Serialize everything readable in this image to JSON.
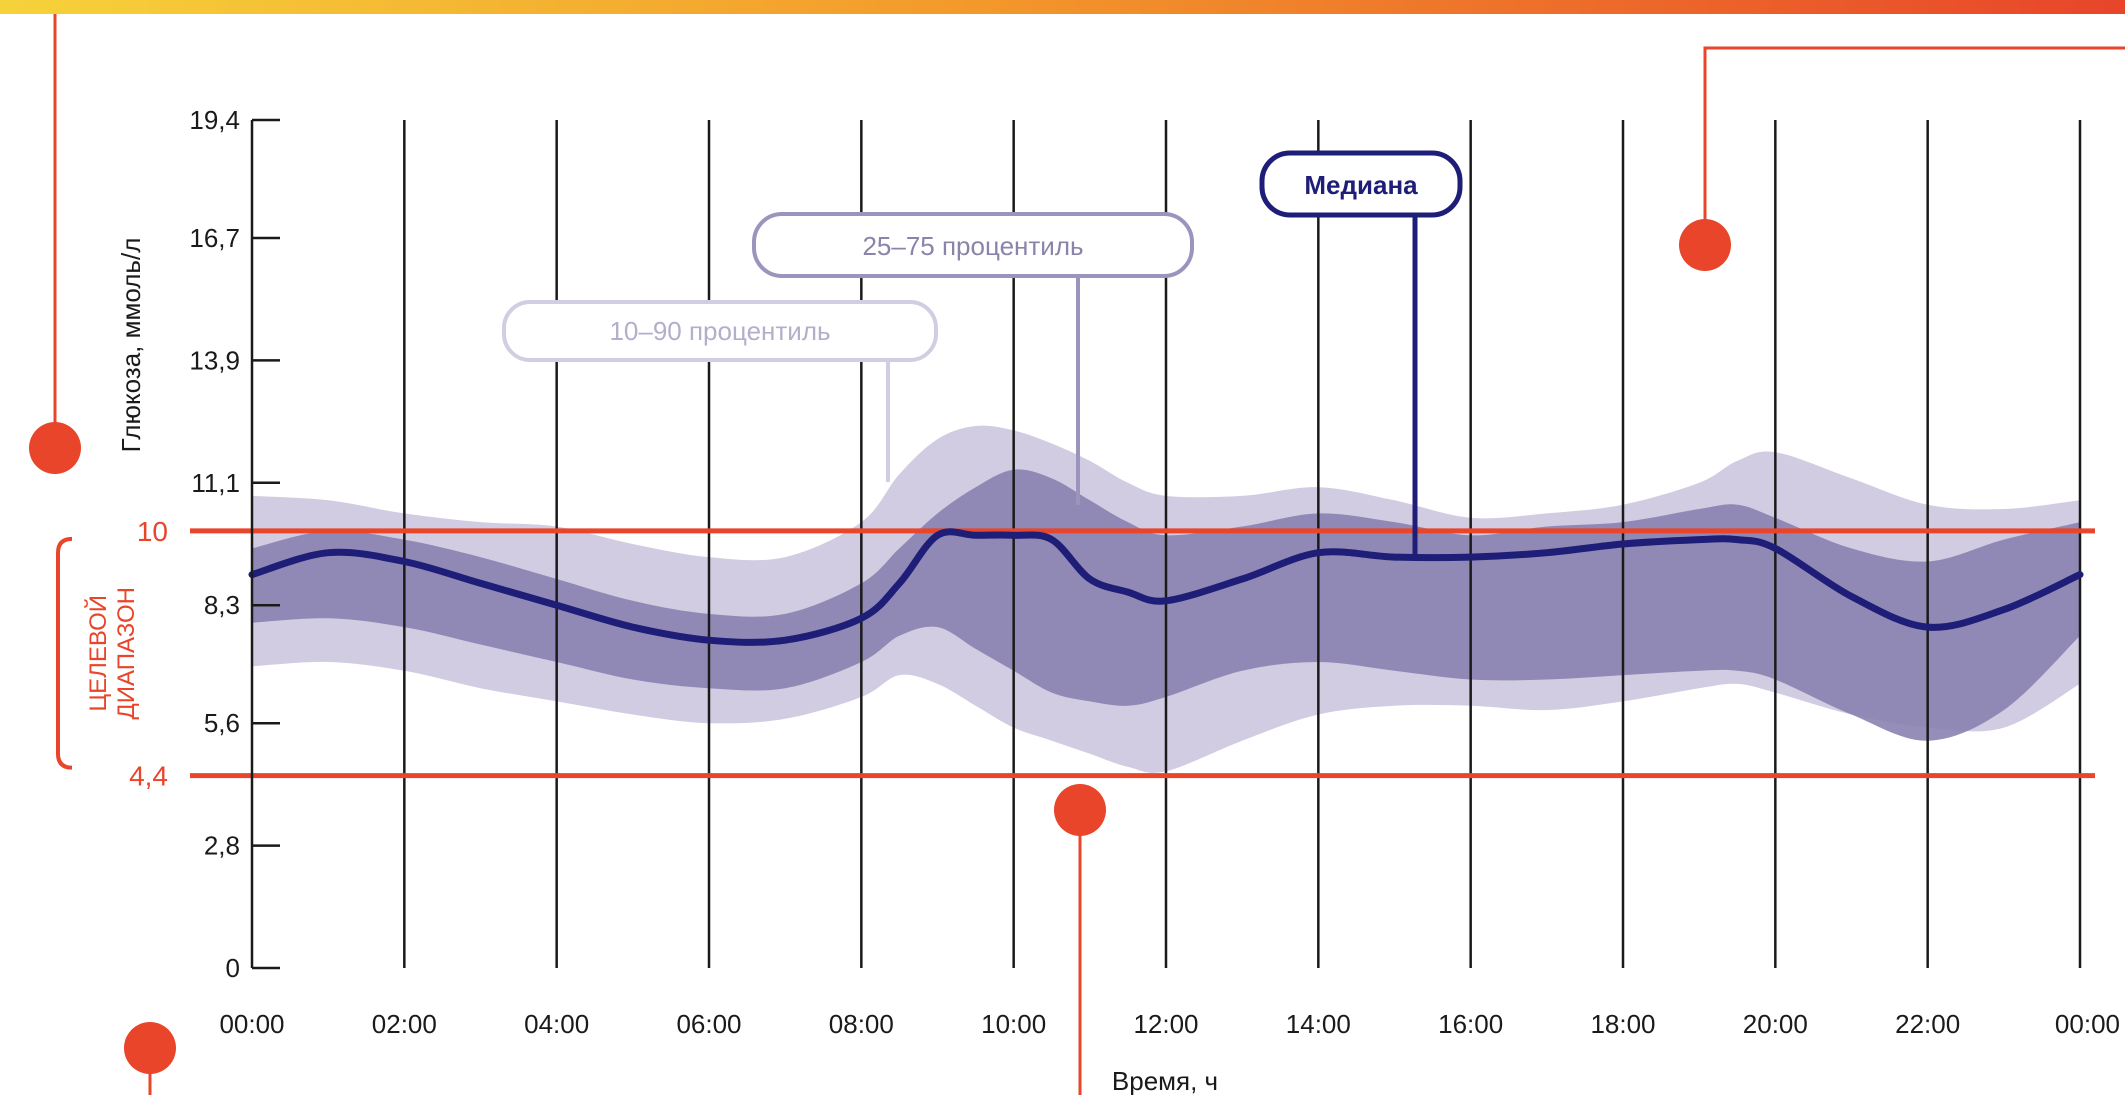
{
  "chart_data": {
    "type": "area",
    "ylabel": "Глюкоза, ммоль/л",
    "xlabel": "Время, ч",
    "x_tick_labels": [
      "00:00",
      "02:00",
      "04:00",
      "06:00",
      "08:00",
      "10:00",
      "12:00",
      "14:00",
      "16:00",
      "18:00",
      "20:00",
      "22:00",
      "00:00"
    ],
    "y_ticks": [
      0,
      2.8,
      5.6,
      8.3,
      11.1,
      13.9,
      16.7,
      19.4
    ],
    "y_tick_labels": [
      "0",
      "2,8",
      "5,6",
      "8,3",
      "11,1",
      "13,9",
      "16,7",
      "19,4"
    ],
    "ylim": [
      0,
      19.4
    ],
    "xlim_hours": [
      0,
      24
    ],
    "target_range": {
      "label_line1": "ЦЕЛЕВОЙ",
      "label_line2": "ДИАПАЗОН",
      "low": 4.4,
      "high": 10,
      "low_label": "4,4",
      "high_label": "10",
      "color": "#e8452a"
    },
    "annotations": {
      "p10_90": "10–90 процентиль",
      "p25_75": "25–75 процентиль",
      "median": "Медиана"
    },
    "hours": [
      0,
      1,
      2,
      3,
      4,
      5,
      6,
      7,
      8,
      8.5,
      9,
      9.5,
      10,
      10.5,
      11,
      11.5,
      12,
      13,
      14,
      15,
      16,
      17,
      18,
      19,
      19.5,
      20,
      21,
      22,
      23,
      24
    ],
    "series": [
      {
        "name": "Медиана",
        "role": "median",
        "color": "#1e1e78",
        "values": [
          9.0,
          9.5,
          9.3,
          8.8,
          8.3,
          7.8,
          7.5,
          7.5,
          8.0,
          8.8,
          9.9,
          9.9,
          9.9,
          9.8,
          8.9,
          8.6,
          8.4,
          8.9,
          9.5,
          9.4,
          9.4,
          9.5,
          9.7,
          9.8,
          9.8,
          9.6,
          8.5,
          7.8,
          8.2,
          9.0
        ]
      },
      {
        "name": "25–75 процентиль",
        "role": "p25",
        "color": "#8a82b0",
        "values": [
          7.9,
          8.0,
          7.8,
          7.4,
          7.0,
          6.6,
          6.4,
          6.4,
          7.0,
          7.6,
          7.8,
          7.3,
          6.8,
          6.3,
          6.1,
          6.0,
          6.2,
          6.8,
          7.0,
          6.8,
          6.6,
          6.6,
          6.7,
          6.8,
          6.8,
          6.6,
          5.8,
          5.2,
          5.9,
          7.6
        ]
      },
      {
        "name": "25–75 процентиль",
        "role": "p75",
        "color": "#8a82b0",
        "values": [
          9.6,
          10.0,
          9.8,
          9.4,
          8.9,
          8.4,
          8.1,
          8.1,
          8.8,
          9.6,
          10.4,
          11.0,
          11.4,
          11.2,
          10.7,
          10.2,
          9.9,
          10.1,
          10.4,
          10.2,
          9.9,
          10.1,
          10.2,
          10.5,
          10.6,
          10.3,
          9.6,
          9.3,
          9.8,
          10.2
        ]
      },
      {
        "name": "10–90 процентиль",
        "role": "p10",
        "color": "#c9c3dd",
        "values": [
          6.9,
          7.0,
          6.8,
          6.4,
          6.1,
          5.8,
          5.6,
          5.7,
          6.2,
          6.7,
          6.5,
          6.0,
          5.5,
          5.2,
          4.9,
          4.6,
          4.5,
          5.2,
          5.8,
          6.0,
          6.0,
          5.9,
          6.1,
          6.4,
          6.5,
          6.3,
          5.8,
          5.5,
          5.5,
          6.5
        ]
      },
      {
        "name": "10–90 процентиль",
        "role": "p90",
        "color": "#c9c3dd",
        "values": [
          10.8,
          10.7,
          10.4,
          10.2,
          10.1,
          9.7,
          9.4,
          9.4,
          10.2,
          11.3,
          12.1,
          12.4,
          12.3,
          12.0,
          11.6,
          11.1,
          10.8,
          10.8,
          11.0,
          10.7,
          10.3,
          10.4,
          10.6,
          11.1,
          11.6,
          11.8,
          11.2,
          10.6,
          10.5,
          10.7
        ]
      }
    ],
    "grid": "vertical-only",
    "legend": "callouts"
  },
  "colors": {
    "accent": "#e8452a",
    "median": "#1e1e78",
    "band_inner": "#8a82b0",
    "band_outer": "#c9c3dd"
  }
}
